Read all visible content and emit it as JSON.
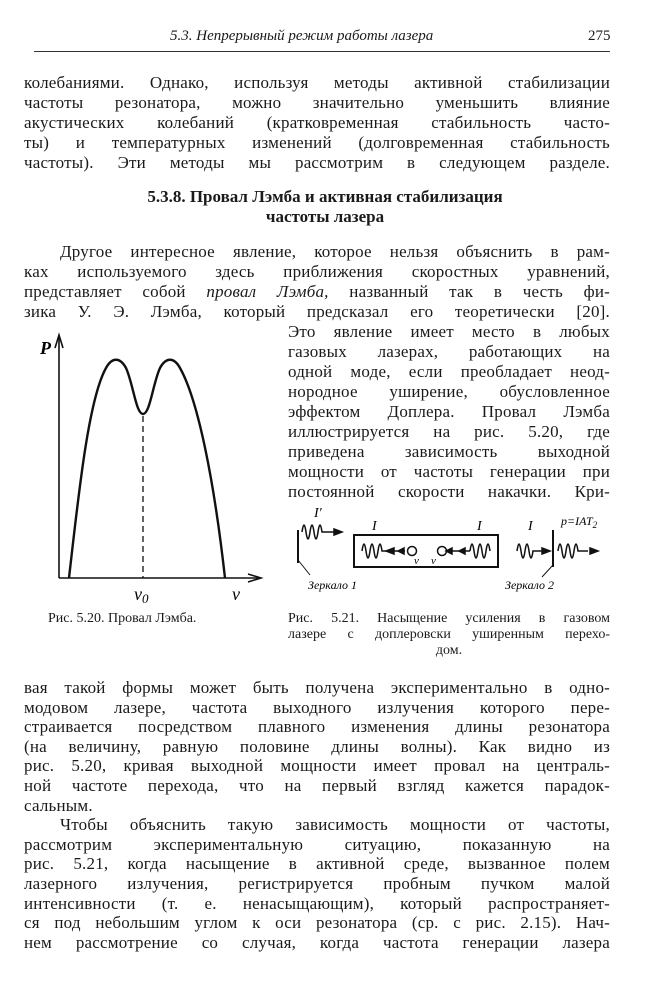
{
  "header": {
    "running_title": "5.3. Непрерывный режим работы лазера",
    "page_number": "275"
  },
  "top_paragraph": [
    "колебаниями. Однако, используя методы активной стабилизации",
    "частоты резонатора, можно значительно уменьшить влияние",
    "акустических колебаний (кратковременная стабильность часто-",
    "ты) и температурных изменений (долговременная стабильность",
    "частоты). Эти методы мы рассмотрим в следующем разделе."
  ],
  "section_heading": [
    "5.3.8. Провал Лэмба и активная стабилизация",
    "частоты лазера"
  ],
  "lamb_paragraph": {
    "line1": "Другое интересное явление, которое нельзя объяснить в рам-",
    "line2": "ках используемого здесь приближения скоростных уравнений,",
    "line3_before": "представляет собой ",
    "line3_italic": "провал Лэмба,",
    "line3_after": " названный так в честь фи-",
    "line4": "зика У. Э. Лэмба, который предсказал его теоретически [20].",
    "right_column": [
      "Это явление имеет место в любых",
      "газовых лазерах, работающих на",
      "одной моде, если преобладает неод-",
      "нородное уширение, обусловленное",
      "эффектом Доплера. Провал Лэмба",
      "иллюстрируется на рис. 5.20, где",
      "приведена зависимость выходной",
      "мощности от частоты генерации при",
      "постоянной скорости накачки. Кри-"
    ]
  },
  "figure_5_20": {
    "y_axis_label": "P",
    "x_axis_label": "ν",
    "center_label": "ν",
    "center_subscript": "0",
    "caption": "Рис. 5.20. Провал Лэмба."
  },
  "figure_5_21": {
    "incident_label": "I'",
    "intensity_left": "I",
    "intensity_right": "I",
    "intensity_out": "I",
    "velocity_left": "v",
    "velocity_right": "v",
    "output_label": "p=IAT",
    "output_subscript": "2",
    "mirror1": "Зеркало 1",
    "mirror2": "Зеркало 2",
    "caption": [
      "Рис. 5.21. Насыщение усиления в газовом",
      "лазере с доплеровски уширенным перехо-",
      "дом."
    ]
  },
  "bottom_paragraphs": [
    "вая такой формы может быть получена экспериментально в одно-",
    "модовом лазере, частота выходного излучения которого пере-",
    "страивается посредством плавного изменения длины резонатора",
    "(на величину, равную половине длины волны). Как видно из",
    "рис. 5.20, кривая выходной мощности имеет провал на централь-",
    "ной частоте перехода, что на первый взгляд кажется парадок-",
    "сальным.",
    "Чтобы объяснить такую зависимость мощности от частоты,",
    "рассмотрим экспериментальную ситуацию, показанную на",
    "рис. 5.21, когда насыщение в активной среде, вызванное полем",
    "лазерного излучения, регистрируется пробным пучком малой",
    "интенсивности (т. е. ненасыщающим), который распространяет-",
    "ся под небольшим углом к оси резонатора (ср. с рис. 2.15). Нач-",
    "нем рассмотрение со случая, когда частота генерации лазера"
  ]
}
